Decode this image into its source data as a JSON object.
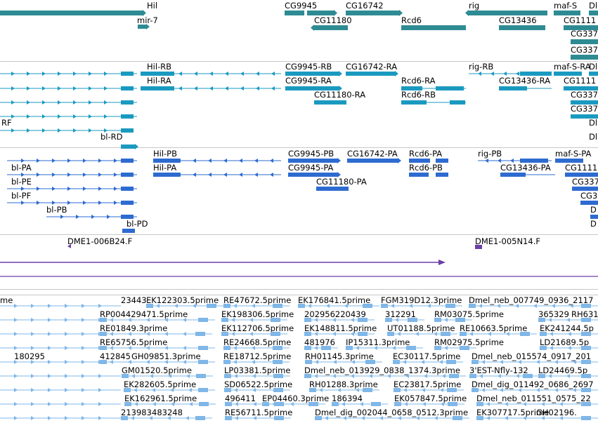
{
  "colors": {
    "gene": "#2e8b93",
    "transcript": "#1b9ac0",
    "protein": "#2e6bd0",
    "clone": "#6a3fa8",
    "est": "#7fb7e8",
    "separator": "#c8c8c8",
    "label": "#000000"
  },
  "tracks": [
    {
      "name": "gene-track",
      "color": "gene",
      "features": [
        {
          "label": "Hil"
        },
        {
          "label": "mir-7"
        },
        {
          "label": "CG9945"
        },
        {
          "label": "CG16742"
        },
        {
          "label": "CG11180"
        },
        {
          "label": "Rcd6"
        },
        {
          "label": "rig"
        },
        {
          "label": "CG13436"
        },
        {
          "label": "maf-S"
        },
        {
          "label": "Dl"
        },
        {
          "label": "CG1111"
        },
        {
          "label": "CG337"
        },
        {
          "label": "CG337"
        }
      ]
    },
    {
      "name": "transcript-track",
      "color": "transcript",
      "features": [
        {
          "label": "Hil-RB"
        },
        {
          "label": "CG9945-RB"
        },
        {
          "label": "CG16742-RA"
        },
        {
          "label": "rig-RB"
        },
        {
          "label": "maf-S-RA"
        },
        {
          "label": "Dl"
        },
        {
          "label": "Hil-RA"
        },
        {
          "label": "CG9945-RA"
        },
        {
          "label": "Rcd6-RA"
        },
        {
          "label": "CG13436-RA"
        },
        {
          "label": "CG1111"
        },
        {
          "label": "CG11180-RA"
        },
        {
          "label": "Rcd6-RB"
        },
        {
          "label": "CG337"
        },
        {
          "label": "CG337"
        },
        {
          "label": "RF"
        },
        {
          "label": "Dl"
        },
        {
          "label": "Dl"
        },
        {
          "label": "bl-RD"
        }
      ]
    },
    {
      "name": "protein-track",
      "color": "protein",
      "features": [
        {
          "label": "Hil-PB"
        },
        {
          "label": "CG9945-PB"
        },
        {
          "label": "CG16742-PA"
        },
        {
          "label": "Rcd6-PA"
        },
        {
          "label": "rig-PB"
        },
        {
          "label": "maf-S-PA"
        },
        {
          "label": "bl-PA"
        },
        {
          "label": "Hil-PA"
        },
        {
          "label": "CG9945-PA"
        },
        {
          "label": "Rcd6-PB"
        },
        {
          "label": "CG13436-PA"
        },
        {
          "label": "CG1111"
        },
        {
          "label": "bl-PE"
        },
        {
          "label": "CG11180-PA"
        },
        {
          "label": "CG337"
        },
        {
          "label": "bl-PF"
        },
        {
          "label": "CG3"
        },
        {
          "label": "bl-PB"
        },
        {
          "label": "D"
        },
        {
          "label": "bl-PD"
        },
        {
          "label": "D"
        }
      ]
    },
    {
      "name": "clone-track",
      "color": "clone",
      "features": [
        {
          "label": "DME1-006B24.F"
        },
        {
          "label": "DME1-005N14.F"
        }
      ]
    },
    {
      "name": "est-track",
      "color": "est",
      "features": [
        {
          "label": "me"
        },
        {
          "label": "23443"
        },
        {
          "label": "EK122303.5prime"
        },
        {
          "label": "RE47672.5prime"
        },
        {
          "label": "EK176841.5prime"
        },
        {
          "label": "FGM319D12.3prime"
        },
        {
          "label": "Dmel_neb_007749_0936_2117"
        },
        {
          "label": "RP004429471.5prime"
        },
        {
          "label": "EK198306.5prime"
        },
        {
          "label": "202956220439"
        },
        {
          "label": "312291"
        },
        {
          "label": "RM03075.5prime"
        },
        {
          "label": "365329"
        },
        {
          "label": "RH631"
        },
        {
          "label": "RE01849.3prime"
        },
        {
          "label": "EK112706.5prime"
        },
        {
          "label": "EK148811.5prime"
        },
        {
          "label": "UT01188.5prime"
        },
        {
          "label": "RE10663.5prime"
        },
        {
          "label": "EK241244.5p"
        },
        {
          "label": "RE65756.5prime"
        },
        {
          "label": "RE24668.5prime"
        },
        {
          "label": "481976"
        },
        {
          "label": "IP15311.3prime"
        },
        {
          "label": "RM02975.5prime"
        },
        {
          "label": "LD21689.5p"
        },
        {
          "label": "180295"
        },
        {
          "label": "412845"
        },
        {
          "label": "GH09851.3prime"
        },
        {
          "label": "RE18712.5prime"
        },
        {
          "label": "RH01145.3prime"
        },
        {
          "label": "EC30117.5prime"
        },
        {
          "label": "Dmel_neb_015574_0917_201"
        },
        {
          "label": "GM01520.5prime"
        },
        {
          "label": "LP03381.5prime"
        },
        {
          "label": "Dmel_neb_013929_0838_1374.3prime"
        },
        {
          "label": "3'EST-Nfly-132"
        },
        {
          "label": "LD24469.5p"
        },
        {
          "label": "EK282605.5prime"
        },
        {
          "label": "SD06522.5prime"
        },
        {
          "label": "RH01288.3prime"
        },
        {
          "label": "EC23817.5prime"
        },
        {
          "label": "Dmel_dig_011492_0686_2697"
        },
        {
          "label": "EK162961.5prime"
        },
        {
          "label": "496411"
        },
        {
          "label": "EP04460.3prime"
        },
        {
          "label": "186394"
        },
        {
          "label": "EK057847.5prime"
        },
        {
          "label": "Dmel_neb_011551_0575_22"
        },
        {
          "label": "213983"
        },
        {
          "label": "483248"
        },
        {
          "label": "RE56711.5prime"
        },
        {
          "label": "Dmel_dig_002044_0658_0512.3prime"
        },
        {
          "label": "EK307717.5prime"
        },
        {
          "label": "GH02196."
        }
      ]
    }
  ]
}
